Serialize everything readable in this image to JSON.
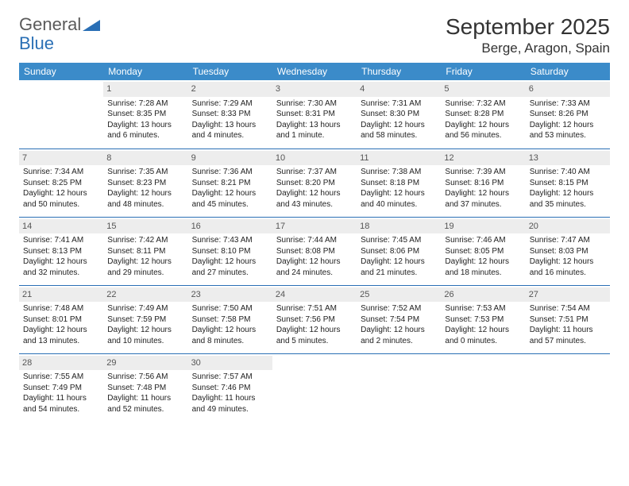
{
  "logo": {
    "part1": "General",
    "part2": "Blue"
  },
  "title": "September 2025",
  "location": "Berge, Aragon, Spain",
  "colors": {
    "header_bg": "#3b8bc9",
    "header_text": "#ffffff",
    "row_divider": "#2a6fb5",
    "daynum_bg": "#ededed",
    "logo_gray": "#5a5a5a",
    "logo_blue": "#2a6fb5"
  },
  "day_headers": [
    "Sunday",
    "Monday",
    "Tuesday",
    "Wednesday",
    "Thursday",
    "Friday",
    "Saturday"
  ],
  "weeks": [
    [
      {
        "n": "",
        "sr": "",
        "ss": "",
        "dl": ""
      },
      {
        "n": "1",
        "sr": "Sunrise: 7:28 AM",
        "ss": "Sunset: 8:35 PM",
        "dl": "Daylight: 13 hours and 6 minutes."
      },
      {
        "n": "2",
        "sr": "Sunrise: 7:29 AM",
        "ss": "Sunset: 8:33 PM",
        "dl": "Daylight: 13 hours and 4 minutes."
      },
      {
        "n": "3",
        "sr": "Sunrise: 7:30 AM",
        "ss": "Sunset: 8:31 PM",
        "dl": "Daylight: 13 hours and 1 minute."
      },
      {
        "n": "4",
        "sr": "Sunrise: 7:31 AM",
        "ss": "Sunset: 8:30 PM",
        "dl": "Daylight: 12 hours and 58 minutes."
      },
      {
        "n": "5",
        "sr": "Sunrise: 7:32 AM",
        "ss": "Sunset: 8:28 PM",
        "dl": "Daylight: 12 hours and 56 minutes."
      },
      {
        "n": "6",
        "sr": "Sunrise: 7:33 AM",
        "ss": "Sunset: 8:26 PM",
        "dl": "Daylight: 12 hours and 53 minutes."
      }
    ],
    [
      {
        "n": "7",
        "sr": "Sunrise: 7:34 AM",
        "ss": "Sunset: 8:25 PM",
        "dl": "Daylight: 12 hours and 50 minutes."
      },
      {
        "n": "8",
        "sr": "Sunrise: 7:35 AM",
        "ss": "Sunset: 8:23 PM",
        "dl": "Daylight: 12 hours and 48 minutes."
      },
      {
        "n": "9",
        "sr": "Sunrise: 7:36 AM",
        "ss": "Sunset: 8:21 PM",
        "dl": "Daylight: 12 hours and 45 minutes."
      },
      {
        "n": "10",
        "sr": "Sunrise: 7:37 AM",
        "ss": "Sunset: 8:20 PM",
        "dl": "Daylight: 12 hours and 43 minutes."
      },
      {
        "n": "11",
        "sr": "Sunrise: 7:38 AM",
        "ss": "Sunset: 8:18 PM",
        "dl": "Daylight: 12 hours and 40 minutes."
      },
      {
        "n": "12",
        "sr": "Sunrise: 7:39 AM",
        "ss": "Sunset: 8:16 PM",
        "dl": "Daylight: 12 hours and 37 minutes."
      },
      {
        "n": "13",
        "sr": "Sunrise: 7:40 AM",
        "ss": "Sunset: 8:15 PM",
        "dl": "Daylight: 12 hours and 35 minutes."
      }
    ],
    [
      {
        "n": "14",
        "sr": "Sunrise: 7:41 AM",
        "ss": "Sunset: 8:13 PM",
        "dl": "Daylight: 12 hours and 32 minutes."
      },
      {
        "n": "15",
        "sr": "Sunrise: 7:42 AM",
        "ss": "Sunset: 8:11 PM",
        "dl": "Daylight: 12 hours and 29 minutes."
      },
      {
        "n": "16",
        "sr": "Sunrise: 7:43 AM",
        "ss": "Sunset: 8:10 PM",
        "dl": "Daylight: 12 hours and 27 minutes."
      },
      {
        "n": "17",
        "sr": "Sunrise: 7:44 AM",
        "ss": "Sunset: 8:08 PM",
        "dl": "Daylight: 12 hours and 24 minutes."
      },
      {
        "n": "18",
        "sr": "Sunrise: 7:45 AM",
        "ss": "Sunset: 8:06 PM",
        "dl": "Daylight: 12 hours and 21 minutes."
      },
      {
        "n": "19",
        "sr": "Sunrise: 7:46 AM",
        "ss": "Sunset: 8:05 PM",
        "dl": "Daylight: 12 hours and 18 minutes."
      },
      {
        "n": "20",
        "sr": "Sunrise: 7:47 AM",
        "ss": "Sunset: 8:03 PM",
        "dl": "Daylight: 12 hours and 16 minutes."
      }
    ],
    [
      {
        "n": "21",
        "sr": "Sunrise: 7:48 AM",
        "ss": "Sunset: 8:01 PM",
        "dl": "Daylight: 12 hours and 13 minutes."
      },
      {
        "n": "22",
        "sr": "Sunrise: 7:49 AM",
        "ss": "Sunset: 7:59 PM",
        "dl": "Daylight: 12 hours and 10 minutes."
      },
      {
        "n": "23",
        "sr": "Sunrise: 7:50 AM",
        "ss": "Sunset: 7:58 PM",
        "dl": "Daylight: 12 hours and 8 minutes."
      },
      {
        "n": "24",
        "sr": "Sunrise: 7:51 AM",
        "ss": "Sunset: 7:56 PM",
        "dl": "Daylight: 12 hours and 5 minutes."
      },
      {
        "n": "25",
        "sr": "Sunrise: 7:52 AM",
        "ss": "Sunset: 7:54 PM",
        "dl": "Daylight: 12 hours and 2 minutes."
      },
      {
        "n": "26",
        "sr": "Sunrise: 7:53 AM",
        "ss": "Sunset: 7:53 PM",
        "dl": "Daylight: 12 hours and 0 minutes."
      },
      {
        "n": "27",
        "sr": "Sunrise: 7:54 AM",
        "ss": "Sunset: 7:51 PM",
        "dl": "Daylight: 11 hours and 57 minutes."
      }
    ],
    [
      {
        "n": "28",
        "sr": "Sunrise: 7:55 AM",
        "ss": "Sunset: 7:49 PM",
        "dl": "Daylight: 11 hours and 54 minutes."
      },
      {
        "n": "29",
        "sr": "Sunrise: 7:56 AM",
        "ss": "Sunset: 7:48 PM",
        "dl": "Daylight: 11 hours and 52 minutes."
      },
      {
        "n": "30",
        "sr": "Sunrise: 7:57 AM",
        "ss": "Sunset: 7:46 PM",
        "dl": "Daylight: 11 hours and 49 minutes."
      },
      {
        "n": "",
        "sr": "",
        "ss": "",
        "dl": ""
      },
      {
        "n": "",
        "sr": "",
        "ss": "",
        "dl": ""
      },
      {
        "n": "",
        "sr": "",
        "ss": "",
        "dl": ""
      },
      {
        "n": "",
        "sr": "",
        "ss": "",
        "dl": ""
      }
    ]
  ]
}
